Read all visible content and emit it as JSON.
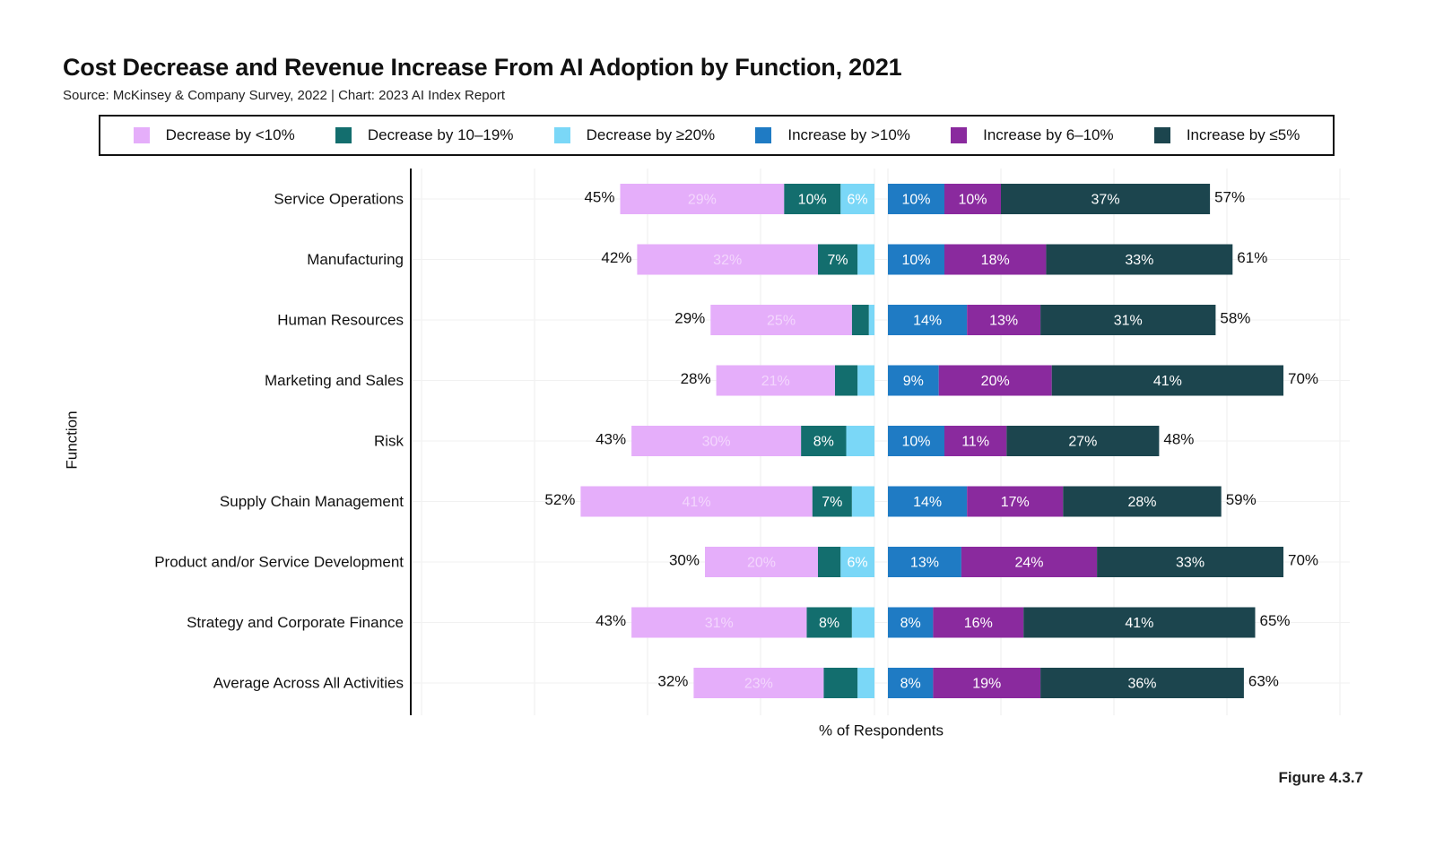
{
  "title": "Cost Decrease and Revenue Increase From AI Adoption by Function, 2021",
  "subtitle": "Source: McKinsey & Company Survey, 2022 | Chart: 2023 AI Index Report",
  "figure_label": "Figure 4.3.7",
  "colors": {
    "dec_lt10": "#e5aefa",
    "dec_10_19": "#136e6e",
    "dec_ge20": "#7ad7f7",
    "inc_gt10": "#1f7bc4",
    "inc_6_10": "#8a2a9e",
    "inc_le5": "#1c454e"
  },
  "legend": [
    {
      "label": "Decrease by <10%",
      "color": "#e5aefa"
    },
    {
      "label": "Decrease by 10–19%",
      "color": "#136e6e"
    },
    {
      "label": "Decrease by ≥20%",
      "color": "#7ad7f7"
    },
    {
      "label": "Increase by >10%",
      "color": "#1f7bc4"
    },
    {
      "label": "Increase by 6–10%",
      "color": "#8a2a9e"
    },
    {
      "label": "Increase by ≤5%",
      "color": "#1c454e"
    }
  ],
  "chart_data": {
    "type": "bar",
    "orientation": "horizontal",
    "stacked": true,
    "diverging": true,
    "ylabel": "Function",
    "xlabel": "% of Respondents",
    "categories": [
      "Service Operations",
      "Manufacturing",
      "Human Resources",
      "Marketing and Sales",
      "Risk",
      "Supply Chain Management",
      "Product and/or Service Development",
      "Strategy and Corporate Finance",
      "Average Across All Activities"
    ],
    "decrease": {
      "series": [
        {
          "name": "Decrease by <10%",
          "color": "#e5aefa",
          "values": [
            29,
            32,
            25,
            21,
            30,
            41,
            20,
            31,
            23
          ],
          "labels": [
            "29%",
            "32%",
            "25%",
            "21%",
            "30%",
            "41%",
            "20%",
            "31%",
            "23%"
          ]
        },
        {
          "name": "Decrease by 10–19%",
          "color": "#136e6e",
          "values": [
            10,
            7,
            3,
            4,
            8,
            7,
            4,
            8,
            6
          ],
          "labels": [
            "10%",
            "7%",
            "",
            "",
            "8%",
            "7%",
            "",
            "8%",
            ""
          ]
        },
        {
          "name": "Decrease by ≥20%",
          "color": "#7ad7f7",
          "values": [
            6,
            3,
            1,
            3,
            5,
            4,
            6,
            4,
            3
          ],
          "labels": [
            "6%",
            "",
            "",
            "",
            "",
            "",
            "6%",
            "",
            ""
          ]
        }
      ],
      "totals": [
        "45%",
        "42%",
        "29%",
        "28%",
        "43%",
        "52%",
        "30%",
        "43%",
        "32%"
      ]
    },
    "increase": {
      "series": [
        {
          "name": "Increase by >10%",
          "color": "#1f7bc4",
          "values": [
            10,
            10,
            14,
            9,
            10,
            14,
            13,
            8,
            8
          ],
          "labels": [
            "10%",
            "10%",
            "14%",
            "9%",
            "10%",
            "14%",
            "13%",
            "8%",
            "8%"
          ]
        },
        {
          "name": "Increase by 6–10%",
          "color": "#8a2a9e",
          "values": [
            10,
            18,
            13,
            20,
            11,
            17,
            24,
            16,
            19
          ],
          "labels": [
            "10%",
            "18%",
            "13%",
            "20%",
            "11%",
            "17%",
            "24%",
            "16%",
            "19%"
          ]
        },
        {
          "name": "Increase by ≤5%",
          "color": "#1c454e",
          "values": [
            37,
            33,
            31,
            41,
            27,
            28,
            33,
            41,
            36
          ],
          "labels": [
            "37%",
            "33%",
            "31%",
            "41%",
            "27%",
            "28%",
            "33%",
            "41%",
            "36%"
          ]
        }
      ],
      "totals": [
        "57%",
        "61%",
        "58%",
        "70%",
        "48%",
        "59%",
        "70%",
        "65%",
        "63%"
      ]
    }
  }
}
